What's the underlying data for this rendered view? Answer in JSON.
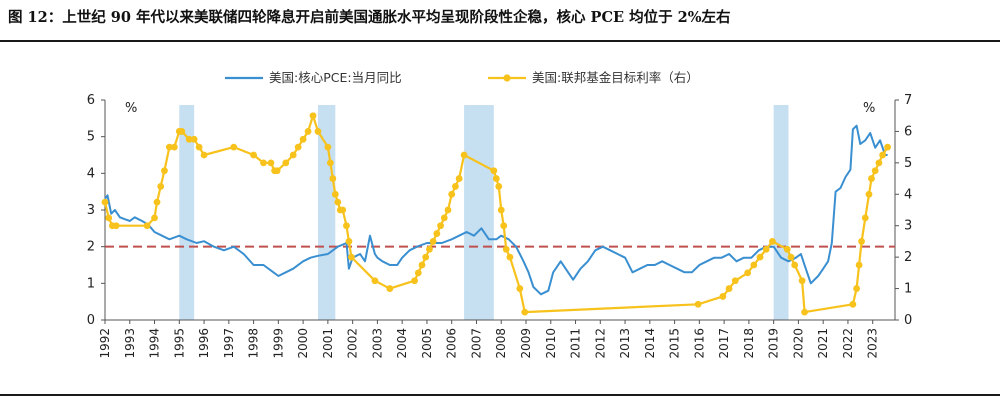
{
  "title": "图 12：上世纪 90 年代以来美联储四轮降息开启前美国通胀水平均呈现阶段性企稳，核心 PCE 均位于 2%左右",
  "chart_data": {
    "type": "line",
    "left_unit": "%",
    "right_unit": "%",
    "y_left_range": [
      0,
      6
    ],
    "y_left_ticks": [
      "0",
      "1",
      "2",
      "3",
      "4",
      "5",
      "6"
    ],
    "y_right_range": [
      0,
      7
    ],
    "y_right_ticks": [
      "0",
      "1",
      "2",
      "3",
      "4",
      "5",
      "6",
      "7"
    ],
    "x_range": [
      1992,
      2023.9
    ],
    "x_ticks": [
      "1992",
      "1993",
      "1994",
      "1995",
      "1996",
      "1997",
      "1998",
      "1999",
      "2000",
      "2001",
      "2002",
      "2003",
      "2004",
      "2005",
      "2006",
      "2007",
      "2008",
      "2009",
      "2010",
      "2011",
      "2012",
      "2013",
      "2014",
      "2015",
      "2016",
      "2017",
      "2018",
      "2019",
      "2020",
      "2021",
      "2022",
      "2023"
    ],
    "reference_line": {
      "y": 2,
      "axis": "left",
      "color": "#c0504d",
      "style": "dashed"
    },
    "shaded_periods": [
      [
        1995.0,
        1995.6
      ],
      [
        2000.6,
        2001.3
      ],
      [
        2006.5,
        2007.7
      ],
      [
        2019.0,
        2019.6
      ]
    ],
    "colors": {
      "core_pce": "#3a8fd1",
      "fed_rate": "#f7c21c",
      "shade": "#c6dff1",
      "axis": "#555555"
    },
    "legend": {
      "position": "top-center"
    },
    "series": [
      {
        "name": "美国:核心PCE:当月同比",
        "axis": "left",
        "color": "#3a8fd1",
        "x": [
          1992.0,
          1992.1,
          1992.25,
          1992.4,
          1992.6,
          1992.8,
          1993.0,
          1993.2,
          1993.5,
          1993.75,
          1994.0,
          1994.3,
          1994.6,
          1995.0,
          1995.3,
          1995.7,
          1996.0,
          1996.4,
          1996.8,
          1997.2,
          1997.6,
          1998.0,
          1998.4,
          1998.8,
          1999.0,
          1999.3,
          1999.6,
          2000.0,
          2000.3,
          2000.6,
          2001.0,
          2001.4,
          2001.75,
          2001.85,
          2002.0,
          2002.3,
          2002.5,
          2002.7,
          2002.9,
          2003.0,
          2003.2,
          2003.5,
          2003.8,
          2004.0,
          2004.3,
          2004.6,
          2005.0,
          2005.3,
          2005.6,
          2006.0,
          2006.3,
          2006.6,
          2006.9,
          2007.2,
          2007.5,
          2007.8,
          2008.0,
          2008.3,
          2008.6,
          2008.9,
          2009.1,
          2009.3,
          2009.6,
          2009.9,
          2010.1,
          2010.4,
          2010.7,
          2010.9,
          2011.2,
          2011.5,
          2011.8,
          2012.1,
          2012.4,
          2012.7,
          2013.0,
          2013.3,
          2013.6,
          2013.9,
          2014.2,
          2014.5,
          2014.8,
          2015.1,
          2015.4,
          2015.7,
          2016.0,
          2016.3,
          2016.6,
          2016.9,
          2017.2,
          2017.5,
          2017.8,
          2018.1,
          2018.4,
          2018.7,
          2019.0,
          2019.3,
          2019.6,
          2019.9,
          2020.1,
          2020.3,
          2020.5,
          2020.8,
          2021.0,
          2021.2,
          2021.35,
          2021.5,
          2021.7,
          2021.9,
          2022.1,
          2022.2,
          2022.35,
          2022.5,
          2022.7,
          2022.9,
          2023.1,
          2023.3,
          2023.5,
          2023.6
        ],
        "y": [
          3.3,
          3.4,
          2.9,
          3.0,
          2.8,
          2.75,
          2.7,
          2.8,
          2.7,
          2.6,
          2.4,
          2.3,
          2.2,
          2.3,
          2.2,
          2.1,
          2.15,
          2.0,
          1.9,
          2.0,
          1.8,
          1.5,
          1.5,
          1.3,
          1.2,
          1.3,
          1.4,
          1.6,
          1.7,
          1.75,
          1.8,
          2.0,
          2.1,
          1.4,
          1.7,
          1.8,
          1.6,
          2.3,
          1.8,
          1.7,
          1.6,
          1.5,
          1.5,
          1.7,
          1.9,
          2.0,
          2.1,
          2.1,
          2.1,
          2.2,
          2.3,
          2.4,
          2.3,
          2.5,
          2.2,
          2.2,
          2.3,
          2.2,
          2.0,
          1.6,
          1.3,
          0.9,
          0.7,
          0.8,
          1.3,
          1.6,
          1.3,
          1.1,
          1.4,
          1.6,
          1.9,
          2.0,
          1.9,
          1.8,
          1.7,
          1.3,
          1.4,
          1.5,
          1.5,
          1.6,
          1.5,
          1.4,
          1.3,
          1.3,
          1.5,
          1.6,
          1.7,
          1.7,
          1.8,
          1.6,
          1.7,
          1.7,
          1.9,
          2.0,
          2.0,
          1.7,
          1.6,
          1.7,
          1.8,
          1.4,
          1.0,
          1.2,
          1.4,
          1.6,
          2.1,
          3.5,
          3.6,
          3.9,
          4.1,
          5.2,
          5.3,
          4.8,
          4.9,
          5.1,
          4.7,
          4.9,
          4.5,
          4.5
        ]
      },
      {
        "name": "美国:联邦基金目标利率（右）",
        "axis": "right",
        "color": "#f7c21c",
        "x": [
          1992.0,
          1992.15,
          1992.3,
          1992.45,
          1993.7,
          1994.0,
          1994.1,
          1994.25,
          1994.4,
          1994.6,
          1994.8,
          1995.0,
          1995.1,
          1995.4,
          1995.6,
          1995.8,
          1996.0,
          1997.2,
          1998.0,
          1998.4,
          1998.7,
          1998.85,
          1998.95,
          1999.3,
          1999.6,
          1999.8,
          2000.0,
          2000.2,
          2000.4,
          2000.6,
          2001.0,
          2001.1,
          2001.2,
          2001.3,
          2001.4,
          2001.5,
          2001.6,
          2001.75,
          2001.85,
          2001.95,
          2002.9,
          2003.5,
          2004.5,
          2004.65,
          2004.8,
          2004.95,
          2005.1,
          2005.25,
          2005.4,
          2005.55,
          2005.7,
          2005.85,
          2006.0,
          2006.15,
          2006.3,
          2006.5,
          2007.7,
          2007.8,
          2007.9,
          2008.0,
          2008.1,
          2008.2,
          2008.35,
          2008.75,
          2008.95,
          2015.95,
          2016.95,
          2017.2,
          2017.45,
          2017.95,
          2018.2,
          2018.45,
          2018.7,
          2018.95,
          2019.55,
          2019.7,
          2019.85,
          2020.15,
          2020.25,
          2022.2,
          2022.35,
          2022.45,
          2022.55,
          2022.7,
          2022.85,
          2022.95,
          2023.1,
          2023.25,
          2023.4,
          2023.6
        ],
        "y": [
          3.75,
          3.25,
          3.0,
          3.0,
          3.0,
          3.25,
          3.75,
          4.25,
          4.75,
          5.5,
          5.5,
          6.0,
          6.0,
          5.75,
          5.75,
          5.5,
          5.25,
          5.5,
          5.25,
          5.0,
          5.0,
          4.75,
          4.75,
          5.0,
          5.25,
          5.5,
          5.75,
          6.0,
          6.5,
          6.0,
          5.5,
          5.0,
          4.5,
          4.0,
          3.75,
          3.5,
          3.5,
          3.0,
          2.5,
          2.0,
          1.25,
          1.0,
          1.25,
          1.5,
          1.75,
          2.0,
          2.25,
          2.5,
          2.75,
          3.0,
          3.25,
          3.5,
          4.0,
          4.25,
          4.5,
          5.25,
          4.75,
          4.5,
          4.25,
          3.5,
          3.0,
          2.25,
          2.0,
          1.0,
          0.25,
          0.5,
          0.75,
          1.0,
          1.25,
          1.5,
          1.75,
          2.0,
          2.25,
          2.5,
          2.25,
          2.0,
          1.75,
          1.25,
          0.25,
          0.5,
          1.0,
          1.75,
          2.5,
          3.25,
          4.0,
          4.5,
          4.75,
          5.0,
          5.25,
          5.5
        ]
      }
    ]
  }
}
